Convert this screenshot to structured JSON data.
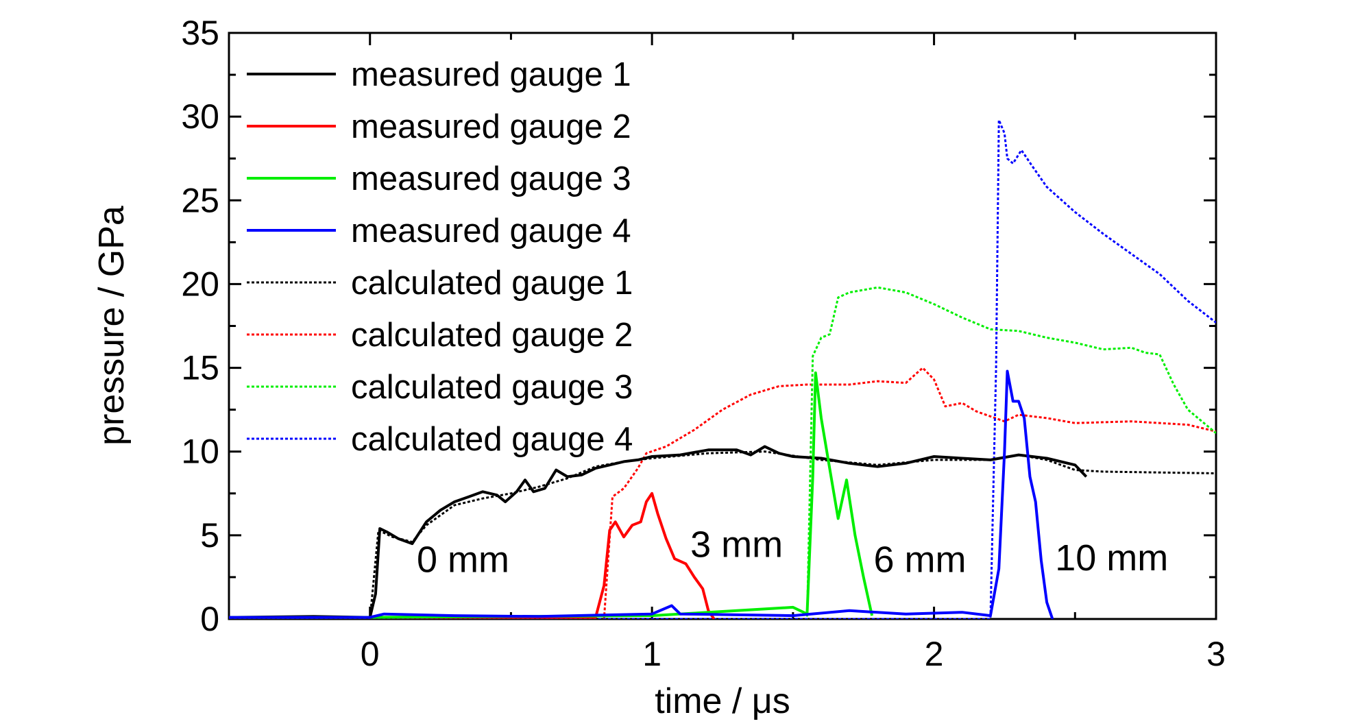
{
  "chart_data": {
    "type": "line",
    "xlabel": "time / μs",
    "ylabel": "pressure / GPa",
    "xlim": [
      -0.5,
      3
    ],
    "ylim": [
      0,
      35
    ],
    "xticks": [
      0,
      1,
      2,
      3
    ],
    "yticks": [
      0,
      5,
      10,
      15,
      20,
      25,
      30,
      35
    ],
    "grid": false,
    "legend_position": "top-left",
    "annotations": [
      {
        "text": "0 mm",
        "x": 0.33,
        "y": 2.8
      },
      {
        "text": "3 mm",
        "x": 1.3,
        "y": 3.7
      },
      {
        "text": "6 mm",
        "x": 1.95,
        "y": 2.8
      },
      {
        "text": "10 mm",
        "x": 2.63,
        "y": 2.9
      }
    ],
    "series": [
      {
        "name": "measured gauge 1",
        "color": "#000000",
        "style": "solid",
        "points": [
          [
            -0.5,
            0.1
          ],
          [
            -0.2,
            0.15
          ],
          [
            0,
            0.1
          ],
          [
            0.02,
            1.5
          ],
          [
            0.035,
            5.4
          ],
          [
            0.06,
            5.2
          ],
          [
            0.1,
            4.8
          ],
          [
            0.15,
            4.5
          ],
          [
            0.2,
            5.8
          ],
          [
            0.25,
            6.5
          ],
          [
            0.3,
            7.0
          ],
          [
            0.35,
            7.3
          ],
          [
            0.4,
            7.6
          ],
          [
            0.45,
            7.4
          ],
          [
            0.48,
            7.0
          ],
          [
            0.52,
            7.6
          ],
          [
            0.55,
            8.3
          ],
          [
            0.58,
            7.6
          ],
          [
            0.62,
            7.8
          ],
          [
            0.66,
            8.9
          ],
          [
            0.7,
            8.5
          ],
          [
            0.75,
            8.6
          ],
          [
            0.8,
            9.0
          ],
          [
            0.85,
            9.2
          ],
          [
            0.9,
            9.4
          ],
          [
            0.95,
            9.5
          ],
          [
            1.0,
            9.7
          ],
          [
            1.1,
            9.8
          ],
          [
            1.2,
            10.1
          ],
          [
            1.3,
            10.1
          ],
          [
            1.35,
            9.8
          ],
          [
            1.4,
            10.3
          ],
          [
            1.45,
            9.9
          ],
          [
            1.5,
            9.7
          ],
          [
            1.6,
            9.6
          ],
          [
            1.7,
            9.3
          ],
          [
            1.8,
            9.1
          ],
          [
            1.9,
            9.3
          ],
          [
            2.0,
            9.7
          ],
          [
            2.1,
            9.6
          ],
          [
            2.2,
            9.5
          ],
          [
            2.3,
            9.8
          ],
          [
            2.4,
            9.6
          ],
          [
            2.5,
            9.2
          ],
          [
            2.54,
            8.5
          ]
        ]
      },
      {
        "name": "measured gauge 2",
        "color": "#ff0000",
        "style": "solid",
        "points": [
          [
            -0.5,
            0.1
          ],
          [
            0,
            0.1
          ],
          [
            0.5,
            0.1
          ],
          [
            0.8,
            0.1
          ],
          [
            0.83,
            2.0
          ],
          [
            0.85,
            5.3
          ],
          [
            0.87,
            5.8
          ],
          [
            0.9,
            4.9
          ],
          [
            0.93,
            5.6
          ],
          [
            0.96,
            5.8
          ],
          [
            0.98,
            7.0
          ],
          [
            1.0,
            7.5
          ],
          [
            1.02,
            6.3
          ],
          [
            1.05,
            4.8
          ],
          [
            1.08,
            3.6
          ],
          [
            1.12,
            3.3
          ],
          [
            1.15,
            2.5
          ],
          [
            1.18,
            1.8
          ],
          [
            1.2,
            0.5
          ],
          [
            1.22,
            0.0
          ]
        ]
      },
      {
        "name": "measured gauge 3",
        "color": "#00ee00",
        "style": "solid",
        "points": [
          [
            -0.5,
            0.1
          ],
          [
            0,
            0.1
          ],
          [
            0.5,
            0.15
          ],
          [
            1.0,
            0.2
          ],
          [
            1.5,
            0.7
          ],
          [
            1.55,
            0.3
          ],
          [
            1.57,
            8.5
          ],
          [
            1.58,
            14.7
          ],
          [
            1.6,
            12.0
          ],
          [
            1.63,
            9.0
          ],
          [
            1.66,
            6.0
          ],
          [
            1.69,
            8.3
          ],
          [
            1.72,
            5.0
          ],
          [
            1.75,
            2.5
          ],
          [
            1.78,
            0.2
          ]
        ]
      },
      {
        "name": "measured gauge 4",
        "color": "#0000ff",
        "style": "solid",
        "points": [
          [
            -0.5,
            0.1
          ],
          [
            0,
            0.1
          ],
          [
            0.05,
            0.3
          ],
          [
            0.3,
            0.2
          ],
          [
            0.6,
            0.15
          ],
          [
            1.0,
            0.3
          ],
          [
            1.07,
            0.8
          ],
          [
            1.1,
            0.3
          ],
          [
            1.5,
            0.2
          ],
          [
            1.7,
            0.5
          ],
          [
            1.9,
            0.3
          ],
          [
            2.1,
            0.4
          ],
          [
            2.2,
            0.2
          ],
          [
            2.23,
            3.0
          ],
          [
            2.25,
            10.0
          ],
          [
            2.26,
            14.8
          ],
          [
            2.28,
            13.0
          ],
          [
            2.3,
            13.0
          ],
          [
            2.32,
            12.0
          ],
          [
            2.34,
            8.5
          ],
          [
            2.36,
            7.0
          ],
          [
            2.38,
            3.5
          ],
          [
            2.4,
            1.0
          ],
          [
            2.42,
            0.0
          ]
        ]
      },
      {
        "name": "calculated gauge 1",
        "color": "#000000",
        "style": "dotted",
        "points": [
          [
            -0.5,
            0
          ],
          [
            0.0,
            0
          ],
          [
            0.03,
            5.3
          ],
          [
            0.08,
            4.9
          ],
          [
            0.15,
            4.6
          ],
          [
            0.2,
            5.6
          ],
          [
            0.3,
            6.8
          ],
          [
            0.4,
            7.2
          ],
          [
            0.5,
            7.5
          ],
          [
            0.6,
            7.9
          ],
          [
            0.7,
            8.4
          ],
          [
            0.8,
            9.1
          ],
          [
            0.9,
            9.4
          ],
          [
            1.0,
            9.6
          ],
          [
            1.2,
            9.9
          ],
          [
            1.4,
            10.0
          ],
          [
            1.6,
            9.5
          ],
          [
            1.8,
            9.2
          ],
          [
            2.0,
            9.5
          ],
          [
            2.2,
            9.5
          ],
          [
            2.3,
            9.8
          ],
          [
            2.4,
            9.5
          ],
          [
            2.5,
            8.9
          ],
          [
            2.6,
            8.8
          ],
          [
            3.0,
            8.7
          ]
        ]
      },
      {
        "name": "calculated gauge 2",
        "color": "#ff0000",
        "style": "dotted",
        "points": [
          [
            -0.5,
            0
          ],
          [
            0.83,
            0
          ],
          [
            0.86,
            7.3
          ],
          [
            0.9,
            7.8
          ],
          [
            0.95,
            9.0
          ],
          [
            0.98,
            9.9
          ],
          [
            1.05,
            10.3
          ],
          [
            1.15,
            11.3
          ],
          [
            1.25,
            12.5
          ],
          [
            1.35,
            13.4
          ],
          [
            1.45,
            13.9
          ],
          [
            1.55,
            14.0
          ],
          [
            1.7,
            14.0
          ],
          [
            1.8,
            14.2
          ],
          [
            1.9,
            14.1
          ],
          [
            1.96,
            15.0
          ],
          [
            2.0,
            14.3
          ],
          [
            2.04,
            12.7
          ],
          [
            2.1,
            12.9
          ],
          [
            2.15,
            12.4
          ],
          [
            2.25,
            11.8
          ],
          [
            2.3,
            12.2
          ],
          [
            2.4,
            12.0
          ],
          [
            2.5,
            11.7
          ],
          [
            2.7,
            11.8
          ],
          [
            2.9,
            11.6
          ],
          [
            3.0,
            11.2
          ]
        ]
      },
      {
        "name": "calculated gauge 3",
        "color": "#00ee00",
        "style": "dotted",
        "points": [
          [
            -0.5,
            0
          ],
          [
            1.55,
            0
          ],
          [
            1.57,
            15.7
          ],
          [
            1.6,
            16.8
          ],
          [
            1.63,
            17.0
          ],
          [
            1.66,
            19.2
          ],
          [
            1.7,
            19.5
          ],
          [
            1.8,
            19.8
          ],
          [
            1.9,
            19.5
          ],
          [
            2.0,
            18.8
          ],
          [
            2.1,
            18.0
          ],
          [
            2.2,
            17.3
          ],
          [
            2.3,
            17.2
          ],
          [
            2.4,
            16.8
          ],
          [
            2.5,
            16.5
          ],
          [
            2.6,
            16.1
          ],
          [
            2.7,
            16.2
          ],
          [
            2.75,
            15.9
          ],
          [
            2.8,
            15.8
          ],
          [
            2.85,
            14.0
          ],
          [
            2.9,
            12.5
          ],
          [
            2.95,
            11.8
          ],
          [
            3.0,
            11.1
          ]
        ]
      },
      {
        "name": "calculated gauge 4",
        "color": "#0000ff",
        "style": "dotted",
        "points": [
          [
            -0.5,
            0
          ],
          [
            2.2,
            0
          ],
          [
            2.22,
            15.0
          ],
          [
            2.23,
            29.8
          ],
          [
            2.25,
            29.0
          ],
          [
            2.26,
            27.5
          ],
          [
            2.28,
            27.2
          ],
          [
            2.31,
            28.0
          ],
          [
            2.35,
            27.0
          ],
          [
            2.4,
            25.8
          ],
          [
            2.5,
            24.3
          ],
          [
            2.6,
            23.0
          ],
          [
            2.7,
            21.8
          ],
          [
            2.8,
            20.6
          ],
          [
            2.9,
            19.0
          ],
          [
            3.0,
            17.7
          ]
        ]
      }
    ]
  }
}
